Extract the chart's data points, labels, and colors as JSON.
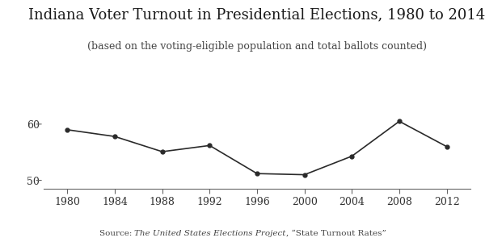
{
  "title": "Indiana Voter Turnout in Presidential Elections, 1980 to 2014",
  "subtitle": "(based on the voting-eligible population and total ballots counted)",
  "source_prefix": "Source: ",
  "source_italic": "The United States Elections Project",
  "source_suffix": ", “State Turnout Rates”",
  "years": [
    1980,
    1984,
    1988,
    1992,
    1996,
    2000,
    2004,
    2008,
    2012
  ],
  "values": [
    59.0,
    57.8,
    55.1,
    56.2,
    51.2,
    51.0,
    54.3,
    60.5,
    56.0
  ],
  "ylim": [
    48.5,
    64
  ],
  "yticks": [
    50,
    60
  ],
  "xlim": [
    1978,
    2014
  ],
  "xticks": [
    1980,
    1984,
    1988,
    1992,
    1996,
    2000,
    2004,
    2008,
    2012
  ],
  "line_color": "#2a2a2a",
  "marker": "o",
  "marker_size": 3.5,
  "line_width": 1.2,
  "bg_color": "#ffffff",
  "title_fontsize": 13,
  "subtitle_fontsize": 9,
  "tick_fontsize": 9,
  "source_fontsize": 7.5
}
